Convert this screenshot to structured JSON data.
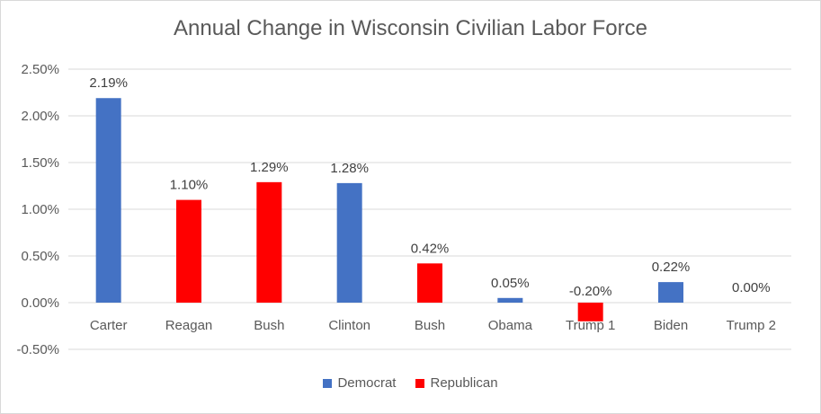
{
  "chart_data": {
    "type": "bar",
    "title": "Annual Change in Wisconsin Civilian Labor Force",
    "categories": [
      "Carter",
      "Reagan",
      "Bush",
      "Clinton",
      "Bush",
      "Obama",
      "Trump 1",
      "Biden",
      "Trump 2"
    ],
    "values": [
      2.19,
      1.1,
      1.29,
      1.28,
      0.42,
      0.05,
      -0.2,
      0.22,
      0.0
    ],
    "value_labels": [
      "2.19%",
      "1.10%",
      "1.29%",
      "1.28%",
      "0.42%",
      "0.05%",
      "-0.20%",
      "0.22%",
      "0.00%"
    ],
    "party": [
      "Democrat",
      "Republican",
      "Republican",
      "Democrat",
      "Republican",
      "Democrat",
      "Republican",
      "Democrat",
      "Republican"
    ],
    "yticks": [
      2.5,
      2.0,
      1.5,
      1.0,
      0.5,
      0.0,
      -0.5
    ],
    "ytick_labels": [
      "2.50%",
      "2.00%",
      "1.50%",
      "1.00%",
      "0.50%",
      "0.00%",
      "-0.50%"
    ],
    "ylim": [
      -0.5,
      2.5
    ],
    "grid": true,
    "legend_position": "bottom",
    "series": [
      {
        "name": "Democrat",
        "color": "#4472c4"
      },
      {
        "name": "Republican",
        "color": "#ff0000"
      }
    ]
  }
}
